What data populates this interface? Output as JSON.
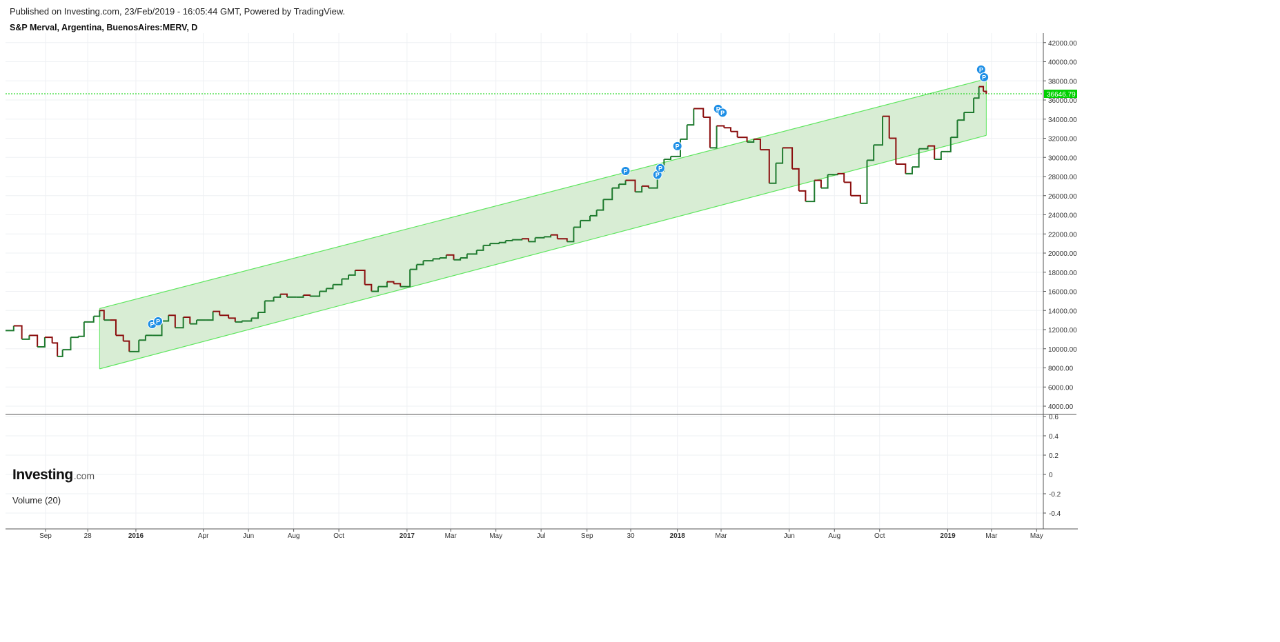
{
  "header": {
    "published": "Published on Investing.com, 23/Feb/2019 - 16:05:44 GMT, Powered by TradingView.",
    "instrument": "S&P Merval, Argentina, BuenosAires:MERV, D"
  },
  "branding": {
    "logo_main": "Investing",
    "logo_sub": ".com"
  },
  "volume_panel": {
    "label": "Volume (20)",
    "ticks": [
      "0.6",
      "0.4",
      "0.2",
      "0",
      "-0.2",
      "-0.4"
    ],
    "tick_values": [
      0.6,
      0.4,
      0.2,
      0,
      -0.2,
      -0.4
    ]
  },
  "colors": {
    "up": "#1e7a2e",
    "down": "#8b0e0e",
    "channel_line": "#5ee65e",
    "channel_fill": "#d6ecd2",
    "last_price": "#00d000",
    "pin": "#1e8fe6",
    "grid": "#eef0f3"
  },
  "chart_data": {
    "type": "line",
    "title": "S&P Merval, Argentina, BuenosAires:MERV, D",
    "ylim": [
      3000,
      43000
    ],
    "y_ticks": [
      "42000.00",
      "40000.00",
      "38000.00",
      "36000.00",
      "34000.00",
      "32000.00",
      "30000.00",
      "28000.00",
      "26000.00",
      "24000.00",
      "22000.00",
      "20000.00",
      "18000.00",
      "16000.00",
      "14000.00",
      "12000.00",
      "10000.00",
      "8000.00",
      "6000.00",
      "4000.00"
    ],
    "y_tick_values": [
      42000,
      40000,
      38000,
      36000,
      34000,
      32000,
      30000,
      28000,
      26000,
      24000,
      22000,
      20000,
      18000,
      16000,
      14000,
      12000,
      10000,
      8000,
      6000,
      4000
    ],
    "x_ticks": [
      {
        "label": "Sep",
        "date": "2015-09-01",
        "bold": false
      },
      {
        "label": "28",
        "date": "2015-10-28",
        "bold": false
      },
      {
        "label": "2016",
        "date": "2016-01-01",
        "bold": true
      },
      {
        "label": "Apr",
        "date": "2016-04-01",
        "bold": false
      },
      {
        "label": "Jun",
        "date": "2016-06-01",
        "bold": false
      },
      {
        "label": "Aug",
        "date": "2016-08-01",
        "bold": false
      },
      {
        "label": "Oct",
        "date": "2016-10-01",
        "bold": false
      },
      {
        "label": "2017",
        "date": "2017-01-01",
        "bold": true
      },
      {
        "label": "Mar",
        "date": "2017-03-01",
        "bold": false
      },
      {
        "label": "May",
        "date": "2017-05-01",
        "bold": false
      },
      {
        "label": "Jul",
        "date": "2017-07-01",
        "bold": false
      },
      {
        "label": "Sep",
        "date": "2017-09-01",
        "bold": false
      },
      {
        "label": "30",
        "date": "2017-10-30",
        "bold": false
      },
      {
        "label": "2018",
        "date": "2018-01-01",
        "bold": true
      },
      {
        "label": "Mar",
        "date": "2018-03-01",
        "bold": false
      },
      {
        "label": "Jun",
        "date": "2018-06-01",
        "bold": false
      },
      {
        "label": "Aug",
        "date": "2018-08-01",
        "bold": false
      },
      {
        "label": "Oct",
        "date": "2018-10-01",
        "bold": false
      },
      {
        "label": "2019",
        "date": "2019-01-01",
        "bold": true
      },
      {
        "label": "Mar",
        "date": "2019-03-01",
        "bold": false
      },
      {
        "label": "May",
        "date": "2019-05-01",
        "bold": false
      }
    ],
    "xlim": [
      "2015-07-09",
      "2019-05-10"
    ],
    "series": [
      {
        "type": "close",
        "points": [
          [
            "2015-07-09",
            11900
          ],
          [
            "2015-07-20",
            12400
          ],
          [
            "2015-07-31",
            11000
          ],
          [
            "2015-08-10",
            11400
          ],
          [
            "2015-08-21",
            10200
          ],
          [
            "2015-08-31",
            11200
          ],
          [
            "2015-09-10",
            10600
          ],
          [
            "2015-09-17",
            9200
          ],
          [
            "2015-09-24",
            9900
          ],
          [
            "2015-10-05",
            11200
          ],
          [
            "2015-10-15",
            11300
          ],
          [
            "2015-10-23",
            12800
          ],
          [
            "2015-11-05",
            13400
          ],
          [
            "2015-11-13",
            14000
          ],
          [
            "2015-11-19",
            13000
          ],
          [
            "2015-11-27",
            13000
          ],
          [
            "2015-12-05",
            11400
          ],
          [
            "2015-12-15",
            10800
          ],
          [
            "2015-12-23",
            9700
          ],
          [
            "2016-01-05",
            10900
          ],
          [
            "2016-01-14",
            11400
          ],
          [
            "2016-01-23",
            11400
          ],
          [
            "2016-02-05",
            12900
          ],
          [
            "2016-02-14",
            13500
          ],
          [
            "2016-02-23",
            12200
          ],
          [
            "2016-03-05",
            13300
          ],
          [
            "2016-03-14",
            12600
          ],
          [
            "2016-03-23",
            13000
          ],
          [
            "2016-04-05",
            13000
          ],
          [
            "2016-04-14",
            13900
          ],
          [
            "2016-04-23",
            13500
          ],
          [
            "2016-05-05",
            13200
          ],
          [
            "2016-05-14",
            12800
          ],
          [
            "2016-05-23",
            12900
          ],
          [
            "2016-06-05",
            13200
          ],
          [
            "2016-06-14",
            13800
          ],
          [
            "2016-06-23",
            15000
          ],
          [
            "2016-07-05",
            15400
          ],
          [
            "2016-07-14",
            15700
          ],
          [
            "2016-07-23",
            15400
          ],
          [
            "2016-08-05",
            15400
          ],
          [
            "2016-08-14",
            15600
          ],
          [
            "2016-08-23",
            15500
          ],
          [
            "2016-09-05",
            16000
          ],
          [
            "2016-09-14",
            16300
          ],
          [
            "2016-09-23",
            16700
          ],
          [
            "2016-10-05",
            17300
          ],
          [
            "2016-10-14",
            17700
          ],
          [
            "2016-10-23",
            18200
          ],
          [
            "2016-11-05",
            16700
          ],
          [
            "2016-11-14",
            16000
          ],
          [
            "2016-11-23",
            16500
          ],
          [
            "2016-12-05",
            17000
          ],
          [
            "2016-12-14",
            16800
          ],
          [
            "2016-12-23",
            16500
          ],
          [
            "2017-01-05",
            18300
          ],
          [
            "2017-01-14",
            18800
          ],
          [
            "2017-01-23",
            19200
          ],
          [
            "2017-02-05",
            19400
          ],
          [
            "2017-02-14",
            19500
          ],
          [
            "2017-02-23",
            19800
          ],
          [
            "2017-03-05",
            19300
          ],
          [
            "2017-03-14",
            19500
          ],
          [
            "2017-03-23",
            19900
          ],
          [
            "2017-04-05",
            20300
          ],
          [
            "2017-04-14",
            20800
          ],
          [
            "2017-04-23",
            21000
          ],
          [
            "2017-05-05",
            21100
          ],
          [
            "2017-05-14",
            21300
          ],
          [
            "2017-05-23",
            21400
          ],
          [
            "2017-06-05",
            21500
          ],
          [
            "2017-06-14",
            21200
          ],
          [
            "2017-06-23",
            21600
          ],
          [
            "2017-07-05",
            21700
          ],
          [
            "2017-07-14",
            21900
          ],
          [
            "2017-07-23",
            21500
          ],
          [
            "2017-08-05",
            21200
          ],
          [
            "2017-08-14",
            22700
          ],
          [
            "2017-08-23",
            23400
          ],
          [
            "2017-09-05",
            23900
          ],
          [
            "2017-09-14",
            24500
          ],
          [
            "2017-09-23",
            25600
          ],
          [
            "2017-10-05",
            26800
          ],
          [
            "2017-10-14",
            27200
          ],
          [
            "2017-10-23",
            27600
          ],
          [
            "2017-11-05",
            26400
          ],
          [
            "2017-11-14",
            27000
          ],
          [
            "2017-11-23",
            26800
          ],
          [
            "2017-12-05",
            28600
          ],
          [
            "2017-12-14",
            29800
          ],
          [
            "2017-12-23",
            30100
          ],
          [
            "2018-01-05",
            31900
          ],
          [
            "2018-01-14",
            33400
          ],
          [
            "2018-01-23",
            35100
          ],
          [
            "2018-02-05",
            34200
          ],
          [
            "2018-02-14",
            31000
          ],
          [
            "2018-02-23",
            33300
          ],
          [
            "2018-03-05",
            33100
          ],
          [
            "2018-03-14",
            32700
          ],
          [
            "2018-03-23",
            32100
          ],
          [
            "2018-04-05",
            31600
          ],
          [
            "2018-04-14",
            31900
          ],
          [
            "2018-04-23",
            30800
          ],
          [
            "2018-05-05",
            27300
          ],
          [
            "2018-05-14",
            29400
          ],
          [
            "2018-05-23",
            31000
          ],
          [
            "2018-06-05",
            28800
          ],
          [
            "2018-06-14",
            26500
          ],
          [
            "2018-06-23",
            25400
          ],
          [
            "2018-07-05",
            27600
          ],
          [
            "2018-07-14",
            26800
          ],
          [
            "2018-07-23",
            28200
          ],
          [
            "2018-08-05",
            28300
          ],
          [
            "2018-08-14",
            27400
          ],
          [
            "2018-08-23",
            26000
          ],
          [
            "2018-09-05",
            25200
          ],
          [
            "2018-09-14",
            29700
          ],
          [
            "2018-09-23",
            31300
          ],
          [
            "2018-10-05",
            34300
          ],
          [
            "2018-10-14",
            32000
          ],
          [
            "2018-10-23",
            29300
          ],
          [
            "2018-11-05",
            28300
          ],
          [
            "2018-11-14",
            29000
          ],
          [
            "2018-11-23",
            30900
          ],
          [
            "2018-12-05",
            31200
          ],
          [
            "2018-12-14",
            29800
          ],
          [
            "2018-12-23",
            30600
          ],
          [
            "2019-01-05",
            32100
          ],
          [
            "2019-01-14",
            33900
          ],
          [
            "2019-01-23",
            34700
          ],
          [
            "2019-02-05",
            36200
          ],
          [
            "2019-02-12",
            37400
          ],
          [
            "2019-02-18",
            36900
          ],
          [
            "2019-02-22",
            36646.79
          ]
        ]
      }
    ],
    "channel": {
      "upper": [
        [
          "2015-11-13",
          14200
        ],
        [
          "2019-02-22",
          38200
        ]
      ],
      "lower": [
        [
          "2015-11-13",
          7900
        ],
        [
          "2019-02-22",
          32300
        ]
      ]
    },
    "last_price": {
      "value": 36646.79,
      "label": "36646.79"
    },
    "markers": [
      {
        "date": "2016-01-23",
        "value": 12000,
        "label": "P"
      },
      {
        "date": "2016-01-31",
        "value": 12300,
        "label": "P"
      },
      {
        "date": "2017-10-23",
        "value": 28000,
        "label": "P"
      },
      {
        "date": "2017-12-05",
        "value": 27600,
        "label": "P"
      },
      {
        "date": "2017-12-09",
        "value": 28300,
        "label": "P"
      },
      {
        "date": "2018-01-01",
        "value": 30600,
        "label": "P"
      },
      {
        "date": "2018-02-25",
        "value": 34500,
        "label": "P"
      },
      {
        "date": "2018-03-03",
        "value": 34100,
        "label": "P"
      },
      {
        "date": "2019-02-15",
        "value": 38600,
        "label": "P"
      },
      {
        "date": "2019-02-19",
        "value": 37800,
        "label": "P"
      }
    ]
  }
}
